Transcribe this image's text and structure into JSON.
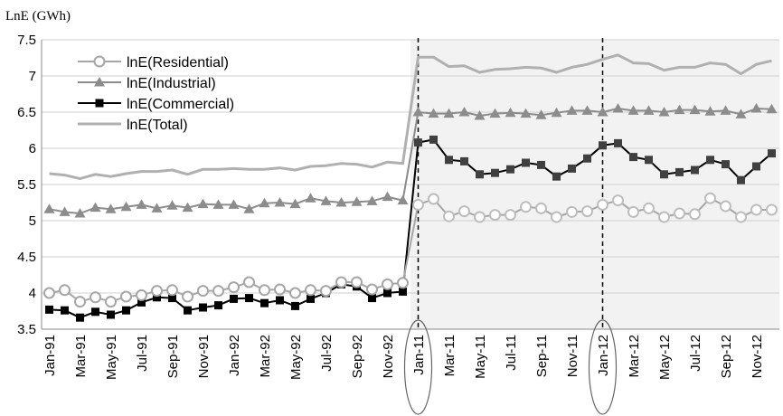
{
  "chart_data": {
    "type": "line",
    "title": "",
    "ylabel": "LnE (GWh)",
    "xlabel": "",
    "ylim": [
      3.5,
      7.5
    ],
    "yticks": [
      "3.5",
      "4",
      "4.5",
      "5",
      "5.5",
      "6",
      "6.5",
      "7",
      "7.5"
    ],
    "grid": "horizontal",
    "legend_position": "top-left",
    "shaded_region_start": "Jan-11",
    "vertical_markers": [
      "Jan-11",
      "Jan-12"
    ],
    "circled_labels": [
      "Jan-11",
      "Jan-12"
    ],
    "x": [
      "Jan-91",
      "Feb-91",
      "Mar-91",
      "Apr-91",
      "May-91",
      "Jun-91",
      "Jul-91",
      "Aug-91",
      "Sep-91",
      "Oct-91",
      "Nov-91",
      "Dec-91",
      "Jan-92",
      "Feb-92",
      "Mar-92",
      "Apr-92",
      "May-92",
      "Jun-92",
      "Jul-92",
      "Aug-92",
      "Sep-92",
      "Oct-92",
      "Nov-92",
      "Dec-92",
      "Jan-11",
      "Feb-11",
      "Mar-11",
      "Apr-11",
      "May-11",
      "Jun-11",
      "Jul-11",
      "Aug-11",
      "Sep-11",
      "Oct-11",
      "Nov-11",
      "Dec-11",
      "Jan-12",
      "Feb-12",
      "Mar-12",
      "Apr-12",
      "May-12",
      "Jun-12",
      "Jul-12",
      "Aug-12",
      "Sep-12",
      "Oct-12",
      "Nov-12",
      "Dec-12"
    ],
    "xtick_labels": [
      "Jan-91",
      "Mar-91",
      "May-91",
      "Jul-91",
      "Sep-91",
      "Nov-91",
      "Jan-92",
      "Mar-92",
      "May-92",
      "Jul-92",
      "Sep-92",
      "Nov-92",
      "Jan-11",
      "Mar-11",
      "May-11",
      "Jul-11",
      "Sep-11",
      "Nov-11",
      "Jan-12",
      "Mar-12",
      "May-12",
      "Jul-12",
      "Sep-12",
      "Nov-12"
    ],
    "series": [
      {
        "name": "lnE(Residential)",
        "marker": "circle",
        "color": "#a6a6a6",
        "values": [
          4.0,
          4.04,
          3.88,
          3.94,
          3.88,
          3.95,
          3.97,
          4.03,
          4.04,
          3.95,
          4.03,
          4.03,
          4.08,
          4.15,
          4.04,
          4.05,
          4.0,
          4.04,
          4.03,
          4.15,
          4.15,
          4.05,
          4.12,
          4.14,
          5.22,
          5.3,
          5.06,
          5.13,
          5.05,
          5.08,
          5.08,
          5.19,
          5.17,
          5.05,
          5.12,
          5.13,
          5.22,
          5.28,
          5.12,
          5.17,
          5.05,
          5.1,
          5.09,
          5.31,
          5.2,
          5.05,
          5.15,
          5.15
        ]
      },
      {
        "name": "lnE(Industrial)",
        "marker": "triangle",
        "color": "#8c8c8c",
        "values": [
          5.16,
          5.12,
          5.1,
          5.18,
          5.16,
          5.19,
          5.22,
          5.17,
          5.21,
          5.18,
          5.23,
          5.22,
          5.22,
          5.16,
          5.24,
          5.25,
          5.23,
          5.31,
          5.27,
          5.25,
          5.26,
          5.27,
          5.33,
          5.28,
          6.5,
          6.48,
          6.48,
          6.5,
          6.45,
          6.48,
          6.49,
          6.48,
          6.46,
          6.49,
          6.52,
          6.52,
          6.5,
          6.55,
          6.52,
          6.52,
          6.5,
          6.53,
          6.53,
          6.51,
          6.52,
          6.47,
          6.55,
          6.54
        ]
      },
      {
        "name": "lnE(Commercial)",
        "marker": "square",
        "color": "#000000",
        "values": [
          3.77,
          3.76,
          3.66,
          3.74,
          3.7,
          3.76,
          3.87,
          3.94,
          3.93,
          3.76,
          3.8,
          3.83,
          3.92,
          3.93,
          3.86,
          3.9,
          3.82,
          3.92,
          4.0,
          4.12,
          4.09,
          3.93,
          4.0,
          4.02,
          6.08,
          6.12,
          5.84,
          5.82,
          5.64,
          5.66,
          5.71,
          5.8,
          5.77,
          5.61,
          5.72,
          5.86,
          6.04,
          6.07,
          5.88,
          5.84,
          5.64,
          5.67,
          5.7,
          5.84,
          5.78,
          5.56,
          5.75,
          5.93
        ]
      },
      {
        "name": "lnE(Total)",
        "marker": "none",
        "color": "#b0b0b0",
        "values": [
          5.65,
          5.63,
          5.58,
          5.64,
          5.61,
          5.65,
          5.68,
          5.68,
          5.7,
          5.64,
          5.71,
          5.71,
          5.72,
          5.71,
          5.71,
          5.73,
          5.7,
          5.75,
          5.76,
          5.79,
          5.78,
          5.74,
          5.81,
          5.79,
          7.26,
          7.26,
          7.13,
          7.14,
          7.05,
          7.09,
          7.1,
          7.12,
          7.11,
          7.05,
          7.12,
          7.16,
          7.23,
          7.29,
          7.18,
          7.17,
          7.08,
          7.12,
          7.12,
          7.18,
          7.16,
          7.03,
          7.16,
          7.21
        ]
      }
    ]
  }
}
